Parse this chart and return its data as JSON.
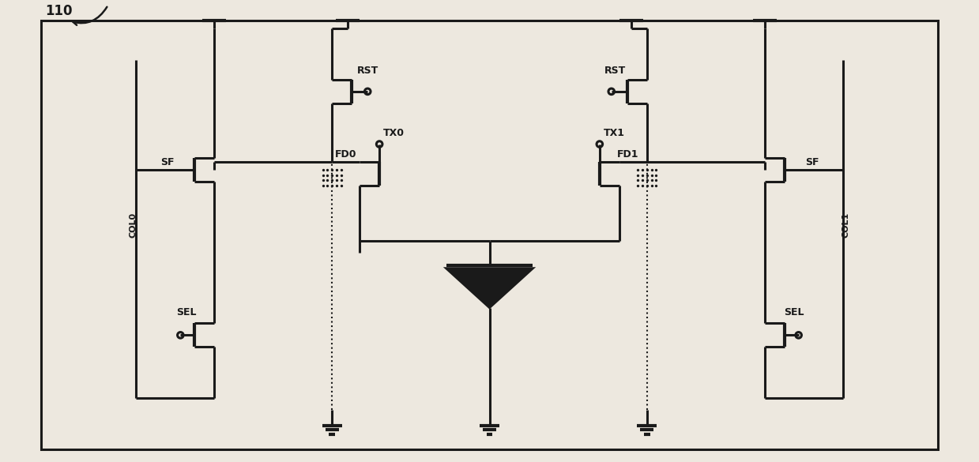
{
  "bg_color": "#ede8df",
  "line_color": "#1a1a1a",
  "lw": 2.2,
  "lw_thick": 3.0,
  "lw_thin": 1.5,
  "figsize": [
    12.39,
    5.85
  ],
  "dpi": 100,
  "label_110": "110",
  "label_col0": "COL0",
  "label_col1": "COL1",
  "label_sf_left": "SF",
  "label_sf_right": "SF",
  "label_rst_left": "RST",
  "label_rst_right": "RST",
  "label_tx0": "TX0",
  "label_tx1": "TX1",
  "label_fd0": "FD0",
  "label_fd1": "FD1",
  "label_sel_left": "SEL",
  "label_sel_right": "SEL",
  "font_size": 9,
  "font_size_col": 8
}
